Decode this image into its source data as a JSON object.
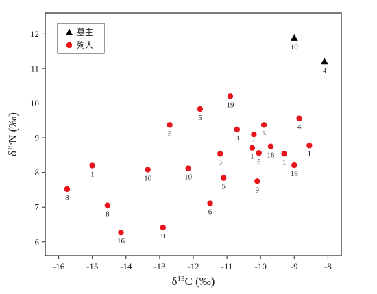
{
  "chart_data": {
    "type": "scatter",
    "xlabel_parts": [
      "δ",
      "13",
      "C (‰)"
    ],
    "ylabel_parts": [
      "δ",
      "15",
      "N (‰)"
    ],
    "xlim": [
      -16.4,
      -7.6
    ],
    "ylim": [
      5.6,
      12.6
    ],
    "xticks": [
      -16,
      -15,
      -14,
      -13,
      -12,
      -11,
      -10,
      -9,
      -8
    ],
    "yticks": [
      6,
      7,
      8,
      9,
      10,
      11,
      12
    ],
    "legend": {
      "position": "top-left"
    },
    "colors": {
      "tomb_owner": "#000000",
      "sacrifice": "#e8141c"
    },
    "series": [
      {
        "name": "墓主",
        "marker": "triangle",
        "points": [
          {
            "x": -9.0,
            "y": 11.88,
            "label": "10"
          },
          {
            "x": -8.1,
            "y": 11.2,
            "label": "4"
          }
        ]
      },
      {
        "name": "殉人",
        "marker": "circle",
        "points": [
          {
            "x": -15.75,
            "y": 7.52,
            "label": "8"
          },
          {
            "x": -15.0,
            "y": 8.2,
            "label": "1"
          },
          {
            "x": -14.55,
            "y": 7.05,
            "label": "8"
          },
          {
            "x": -14.15,
            "y": 6.27,
            "label": "16"
          },
          {
            "x": -13.35,
            "y": 8.08,
            "label": "10"
          },
          {
            "x": -12.9,
            "y": 6.41,
            "label": "9"
          },
          {
            "x": -12.7,
            "y": 9.37,
            "label": "5"
          },
          {
            "x": -12.15,
            "y": 8.12,
            "label": "10"
          },
          {
            "x": -11.8,
            "y": 9.83,
            "label": "5"
          },
          {
            "x": -11.5,
            "y": 7.11,
            "label": "6"
          },
          {
            "x": -11.2,
            "y": 8.54,
            "label": "3"
          },
          {
            "x": -11.1,
            "y": 7.84,
            "label": "5"
          },
          {
            "x": -10.9,
            "y": 10.2,
            "label": "19"
          },
          {
            "x": -10.7,
            "y": 9.24,
            "label": "3"
          },
          {
            "x": -10.25,
            "y": 8.71,
            "label": "1"
          },
          {
            "x": -10.2,
            "y": 9.1,
            "label": "1"
          },
          {
            "x": -10.1,
            "y": 7.75,
            "label": "9"
          },
          {
            "x": -10.05,
            "y": 8.56,
            "label": "5"
          },
          {
            "x": -9.9,
            "y": 9.37,
            "label": "3"
          },
          {
            "x": -9.7,
            "y": 8.75,
            "label": "18"
          },
          {
            "x": -9.3,
            "y": 8.54,
            "label": "1"
          },
          {
            "x": -9.0,
            "y": 8.21,
            "label": "19"
          },
          {
            "x": -8.85,
            "y": 9.56,
            "label": "4"
          },
          {
            "x": -8.55,
            "y": 8.78,
            "label": "1"
          }
        ]
      }
    ]
  }
}
